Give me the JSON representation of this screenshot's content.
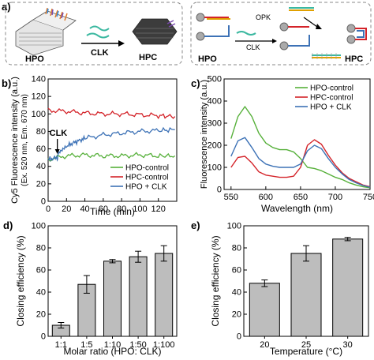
{
  "panel_labels": {
    "a": "a)",
    "b": "b)",
    "c": "c)",
    "d": "d)",
    "e": "e)"
  },
  "schematic": {
    "left": {
      "from": "HPO",
      "to": "HPC",
      "arrow": "CLK"
    },
    "right": {
      "from": "HPO",
      "to": "HPC",
      "opk": "OPK",
      "clk": "CLK"
    }
  },
  "legend_labels": [
    "HPO-control",
    "HPC-control",
    "HPO + CLK"
  ],
  "colors": {
    "HPO-control": "#56b03a",
    "HPC-control": "#d4242a",
    "HPO + CLK": "#3d72b6",
    "bar": "#bdbdbd"
  },
  "chart_data": [
    {
      "panel": "b",
      "type": "line",
      "xlabel": "Time (min)",
      "ylabel": "Cy5 Fluorescence intensity (a.u.)",
      "ylabel2": "(Ex. 520 nm, Em. 670 nm)",
      "xlim": [
        0,
        140
      ],
      "ylim": [
        0,
        140
      ],
      "xticks": [
        "0",
        "20",
        "40",
        "60",
        "80",
        "100",
        "120"
      ],
      "yticks": [
        "0",
        "20",
        "40",
        "60",
        "80",
        "100",
        "120",
        "140"
      ],
      "annotation": "CLK",
      "annotation_x": 10,
      "legend_position": "lower-right",
      "series": [
        {
          "name": "HPO-control",
          "x": [
            0,
            20,
            40,
            60,
            80,
            100,
            120,
            138
          ],
          "y": [
            48,
            52,
            53,
            52,
            52,
            53,
            52,
            52
          ]
        },
        {
          "name": "HPC-control",
          "x": [
            0,
            20,
            40,
            60,
            80,
            100,
            120,
            138
          ],
          "y": [
            104,
            103,
            101,
            100,
            100,
            99,
            98,
            97
          ]
        },
        {
          "name": "HPO + CLK",
          "x": [
            0,
            10,
            12,
            20,
            30,
            40,
            60,
            80,
            100,
            120,
            138
          ],
          "y": [
            48,
            50,
            56,
            63,
            68,
            72,
            76,
            78,
            80,
            81,
            82
          ]
        }
      ]
    },
    {
      "panel": "c",
      "type": "line",
      "xlabel": "Wavelength (nm)",
      "ylabel": "Fluorescence intensity (a.u.)",
      "xlim": [
        540,
        750
      ],
      "ylim": [
        0,
        500
      ],
      "xticks": [
        "550",
        "600",
        "650",
        "700",
        "750"
      ],
      "yticks": [
        "0",
        "100",
        "200",
        "300",
        "400",
        "500"
      ],
      "legend_position": "top-right",
      "series": [
        {
          "name": "HPO-control",
          "x": [
            550,
            560,
            570,
            580,
            590,
            600,
            610,
            620,
            630,
            640,
            650,
            660,
            670,
            680,
            690,
            700,
            710,
            720,
            730,
            740,
            750
          ],
          "y": [
            230,
            330,
            375,
            330,
            255,
            210,
            190,
            180,
            180,
            170,
            140,
            100,
            95,
            85,
            70,
            55,
            45,
            30,
            20,
            12,
            8
          ]
        },
        {
          "name": "HPC-control",
          "x": [
            550,
            560,
            570,
            580,
            590,
            600,
            610,
            620,
            630,
            640,
            650,
            660,
            670,
            680,
            690,
            700,
            710,
            720,
            730,
            740,
            750
          ],
          "y": [
            100,
            145,
            150,
            120,
            80,
            65,
            60,
            55,
            55,
            60,
            100,
            200,
            225,
            205,
            155,
            110,
            75,
            50,
            35,
            20,
            12
          ]
        },
        {
          "name": "HPO + CLK",
          "x": [
            550,
            560,
            570,
            580,
            590,
            600,
            610,
            620,
            630,
            640,
            650,
            660,
            670,
            680,
            690,
            700,
            710,
            720,
            730,
            740,
            750
          ],
          "y": [
            150,
            220,
            235,
            190,
            140,
            115,
            105,
            100,
            100,
            100,
            115,
            175,
            200,
            185,
            140,
            100,
            70,
            45,
            30,
            18,
            10
          ]
        }
      ]
    },
    {
      "panel": "d",
      "type": "bar",
      "xlabel": "Molar ratio (HPO: CLK)",
      "ylabel": "Closing efficiency (%)",
      "ylim": [
        0,
        100
      ],
      "yticks": [
        "0",
        "20",
        "40",
        "60",
        "80",
        "100"
      ],
      "categories": [
        "1:1",
        "1:5",
        "1:10",
        "1:50",
        "1:100"
      ],
      "values": [
        10,
        47,
        68,
        72,
        75
      ],
      "errors": [
        2.5,
        8,
        1.5,
        5,
        7
      ]
    },
    {
      "panel": "e",
      "type": "bar",
      "xlabel": "Temperature (°C)",
      "ylabel": "Closing efficiency (%)",
      "ylim": [
        0,
        100
      ],
      "yticks": [
        "0",
        "20",
        "40",
        "60",
        "80",
        "100"
      ],
      "categories": [
        "20",
        "25",
        "30"
      ],
      "values": [
        48,
        75,
        88
      ],
      "errors": [
        3,
        7,
        1.5
      ]
    }
  ]
}
